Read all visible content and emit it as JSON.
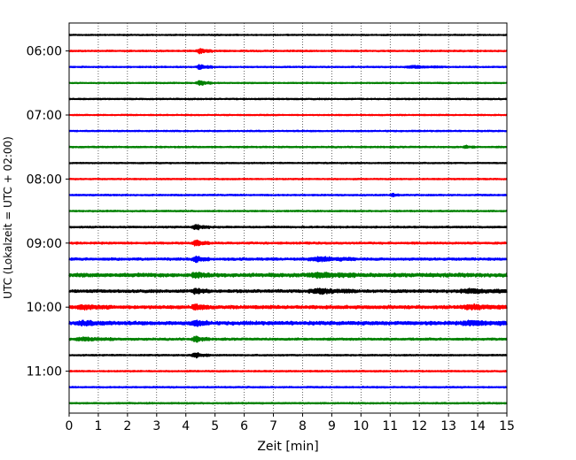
{
  "chart_data": {
    "type": "line",
    "title": "",
    "xlabel": "Zeit  [min]",
    "ylabel": "UTC (Lokalzeit = UTC + 02:00)",
    "xlim": [
      0,
      15
    ],
    "x_ticks": [
      "0",
      "1",
      "2",
      "3",
      "4",
      "5",
      "6",
      "7",
      "8",
      "9",
      "10",
      "11",
      "12",
      "13",
      "14",
      "15"
    ],
    "y_ticks": [
      "06:00",
      "07:00",
      "08:00",
      "09:00",
      "10:00",
      "11:00"
    ],
    "start_time": "05:45",
    "trace_interval_min": 15,
    "grid": "vertical dotted lines at each minute",
    "trace_colors": [
      "#000000",
      "#ff0000",
      "#0000ff",
      "#008000"
    ],
    "trace_count": 24,
    "events": [
      {
        "start_min": 4.35,
        "end_min": 4.9,
        "traces": [
          1,
          2,
          3
        ],
        "amplitude": 3.2
      },
      {
        "start_min": 4.2,
        "end_min": 4.8,
        "traces": [
          12,
          13,
          14,
          15,
          16,
          17,
          18,
          19,
          20
        ],
        "amplitude": 3.5
      },
      {
        "start_min": 8.2,
        "end_min": 9.8,
        "traces": [
          14,
          15,
          16
        ],
        "amplitude": 2.8
      },
      {
        "start_min": 13.4,
        "end_min": 15.0,
        "traces": [
          16,
          17,
          18
        ],
        "amplitude": 2.5
      },
      {
        "start_min": 11.0,
        "end_min": 11.3,
        "traces": [
          10
        ],
        "amplitude": 2.0
      },
      {
        "start_min": 0.2,
        "end_min": 1.5,
        "traces": [
          17,
          18,
          19
        ],
        "amplitude": 2.0
      },
      {
        "start_min": 11.5,
        "end_min": 12.8,
        "traces": [
          2
        ],
        "amplitude": 1.6
      },
      {
        "start_min": 13.5,
        "end_min": 13.9,
        "traces": [
          7
        ],
        "amplitude": 1.5
      }
    ],
    "noise_levels": [
      0.5,
      0.6,
      0.55,
      0.5,
      0.55,
      0.5,
      0.55,
      0.6,
      0.5,
      0.55,
      0.6,
      0.6,
      0.7,
      0.8,
      1.0,
      1.6,
      1.2,
      1.4,
      1.5,
      0.9,
      0.6,
      0.6,
      0.6,
      0.6
    ]
  }
}
